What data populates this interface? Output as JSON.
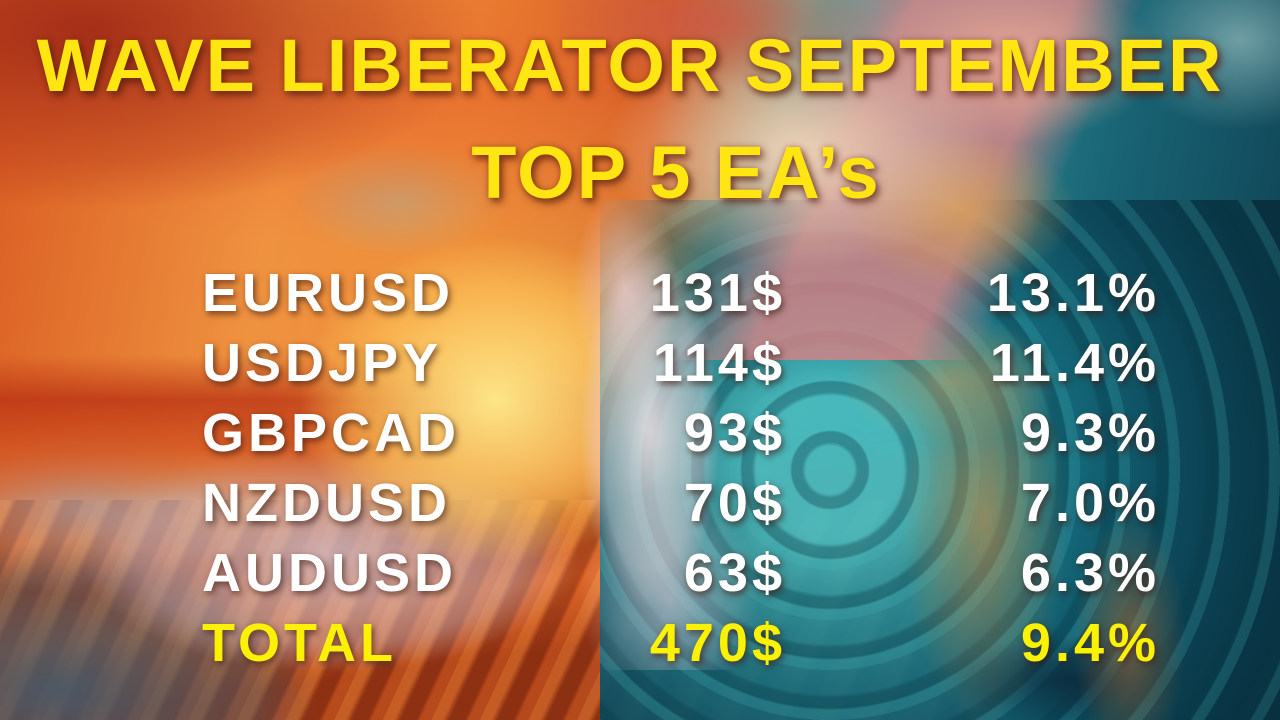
{
  "slide": {
    "title": "WAVE LIBERATOR SEPTEMBER",
    "subtitle": "TOP 5 EA’s"
  },
  "table": {
    "rows": [
      {
        "pair": "EURUSD",
        "amount": "131$",
        "percent": "13.1%"
      },
      {
        "pair": "USDJPY",
        "amount": "114$",
        "percent": "11.4%"
      },
      {
        "pair": "GBPCAD",
        "amount": "93$",
        "percent": "9.3%"
      },
      {
        "pair": "NZDUSD",
        "amount": "70$",
        "percent": "7.0%"
      },
      {
        "pair": "AUDUSD",
        "amount": "63$",
        "percent": "6.3%"
      }
    ],
    "total": {
      "label": "TOTAL",
      "amount": "470$",
      "percent": "9.4%"
    }
  },
  "chart_data": {
    "type": "table",
    "title": "WAVE LIBERATOR SEPTEMBER TOP 5 EA’s",
    "columns": [
      "pair",
      "profit_dollars",
      "profit_percent"
    ],
    "rows": [
      [
        "EURUSD",
        131,
        13.1
      ],
      [
        "USDJPY",
        114,
        11.4
      ],
      [
        "GBPCAD",
        93,
        9.3
      ],
      [
        "NZDUSD",
        70,
        7.0
      ],
      [
        "AUDUSD",
        63,
        6.3
      ]
    ],
    "total": [
      "TOTAL",
      470,
      9.4
    ]
  },
  "colors": {
    "accent_yellow": "#ffe512",
    "total_yellow": "#fbf103",
    "row_white": "#ffffff",
    "sunset_orange": "#e8792e",
    "ocean_teal": "#1d7a88"
  }
}
